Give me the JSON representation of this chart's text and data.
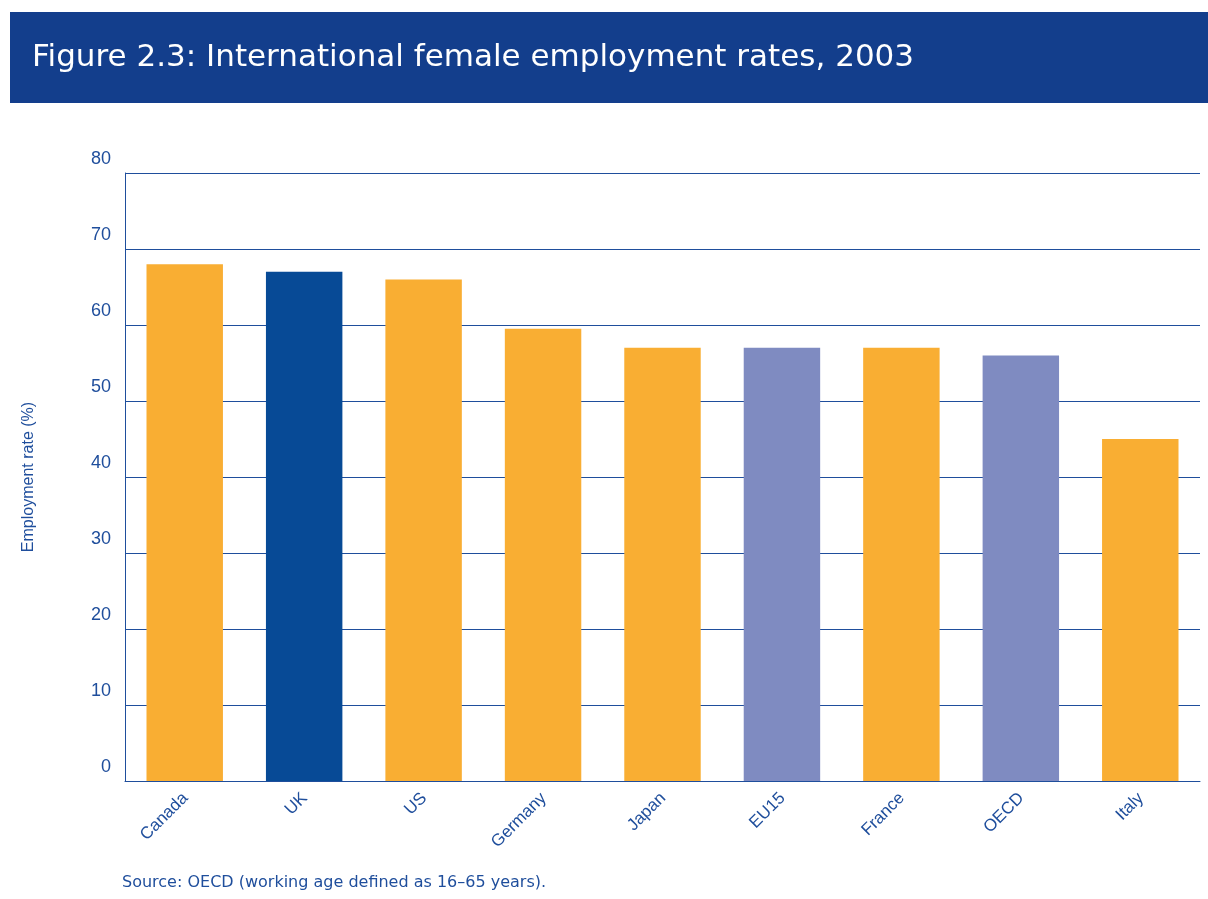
{
  "chart_data": {
    "type": "bar",
    "title": "Figure 2.3: International female employment rates, 2003",
    "ylabel": "Employment rate (%)",
    "categories": [
      "Canada",
      "UK",
      "US",
      "Germany",
      "Japan",
      "EU15",
      "France",
      "OECD",
      "Italy"
    ],
    "values": [
      68,
      67,
      66,
      59.5,
      57,
      57,
      57,
      56,
      45
    ],
    "colors": [
      "#f9ae33",
      "#074a96",
      "#f9ae33",
      "#f9ae33",
      "#f9ae33",
      "#7f8bc1",
      "#f9ae33",
      "#7f8bc1",
      "#f9ae33"
    ],
    "ylim": [
      0,
      80
    ],
    "yticks": [
      0,
      10,
      20,
      30,
      40,
      50,
      60,
      70,
      80
    ],
    "grid": "y",
    "annotations": [
      "Source: OECD (working age defined as 16–65 years)."
    ]
  }
}
